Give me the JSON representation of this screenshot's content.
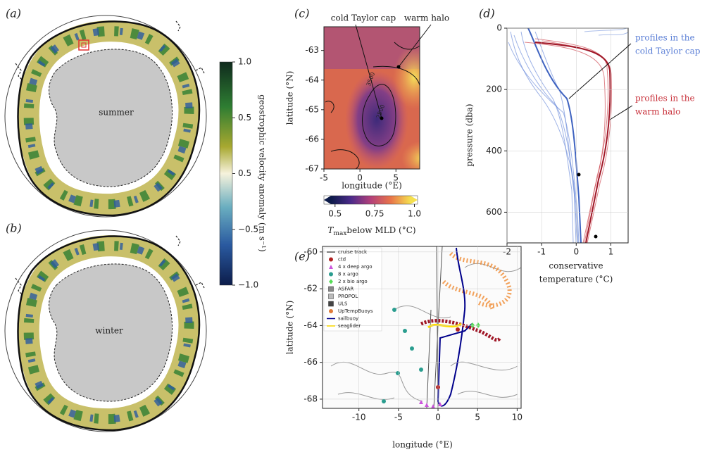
{
  "panel_a": {
    "label": "(a)",
    "annotation": "summer"
  },
  "panel_b": {
    "label": "(b)",
    "annotation": "winter"
  },
  "colorbar_ab": {
    "label": "geostrophic velocity anomaly (m s⁻¹)",
    "tick_labels": [
      "1.0",
      "0.5",
      "0.5",
      "−0.5",
      "−1.0"
    ]
  },
  "panel_c": {
    "label": "(c)",
    "xlabel": "longitude (°E)",
    "ylabel": "latitude (°N)",
    "xlim": [
      -5,
      8.3
    ],
    "xticks": [
      -5,
      0,
      5
    ],
    "ylim": [
      -67,
      -62.2
    ],
    "yticks": [
      -63,
      -64,
      -65,
      -66,
      -67
    ],
    "annotations": [
      "cold Taylor cap",
      "warm halo"
    ],
    "contour_labels": [
      "3500",
      "2500"
    ],
    "colorbar": {
      "label_symbol": "T",
      "label_subscript": "max",
      "label_text": "below MLD (°C)",
      "lim": [
        0.43,
        1.02
      ],
      "ticks": [
        0.5,
        0.75,
        {
          "value": 1,
          "label": "1.0"
        }
      ]
    }
  },
  "panel_d": {
    "label": "(d)",
    "xlabel": [
      "conservative",
      "temperature (°C)"
    ],
    "ylabel": "pressure (dba)",
    "xlim": [
      -2,
      1.5
    ],
    "xticks": [
      -2,
      -1,
      0,
      1
    ],
    "ylim": [
      0,
      700
    ],
    "yticks": [
      0,
      200,
      400,
      600
    ],
    "y_inverted": true,
    "annotations": [
      {
        "lines": [
          "profiles in the",
          "cold Taylor cap"
        ],
        "color": "#5b7fd6"
      },
      {
        "lines": [
          "profiles in the",
          "warm halo"
        ],
        "color": "#c8303a"
      }
    ]
  },
  "panel_e": {
    "label": "(e)",
    "xlabel": "longitude (°E)",
    "ylabel": "latitude (°N)",
    "xlim": [
      -14.6,
      10.5
    ],
    "xticks": [
      -10,
      -5,
      0,
      5,
      10
    ],
    "ylim": [
      -68.5,
      -59.7
    ],
    "yticks": [
      -60,
      -62,
      -64,
      -66,
      -68
    ],
    "legend": [
      {
        "name": "cruise track",
        "color": "#555555",
        "marker": "line"
      },
      {
        "name": "ctd",
        "color": "#b22222",
        "marker": "circle"
      },
      {
        "name": "4 x deep argo",
        "color": "#cc55dd",
        "marker": "triangle"
      },
      {
        "name": "8 x argo",
        "color": "#2a9d8f",
        "marker": "circle"
      },
      {
        "name": "2 x bio argo",
        "color": "#55dd55",
        "marker": "diamond"
      },
      {
        "name": "ASFAR",
        "color": "#888888",
        "marker": "square"
      },
      {
        "name": "PROPOL",
        "color": "#bbbbbb",
        "marker": "square"
      },
      {
        "name": "ULS",
        "color": "#444444",
        "marker": "square"
      },
      {
        "name": "UpTempBuoys",
        "color": "#e07b39",
        "marker": "circle"
      },
      {
        "name": "sailbuoy",
        "color": "#00008b",
        "marker": "line"
      },
      {
        "name": "seaglider",
        "color": "#ffdd00",
        "marker": "line"
      }
    ]
  }
}
